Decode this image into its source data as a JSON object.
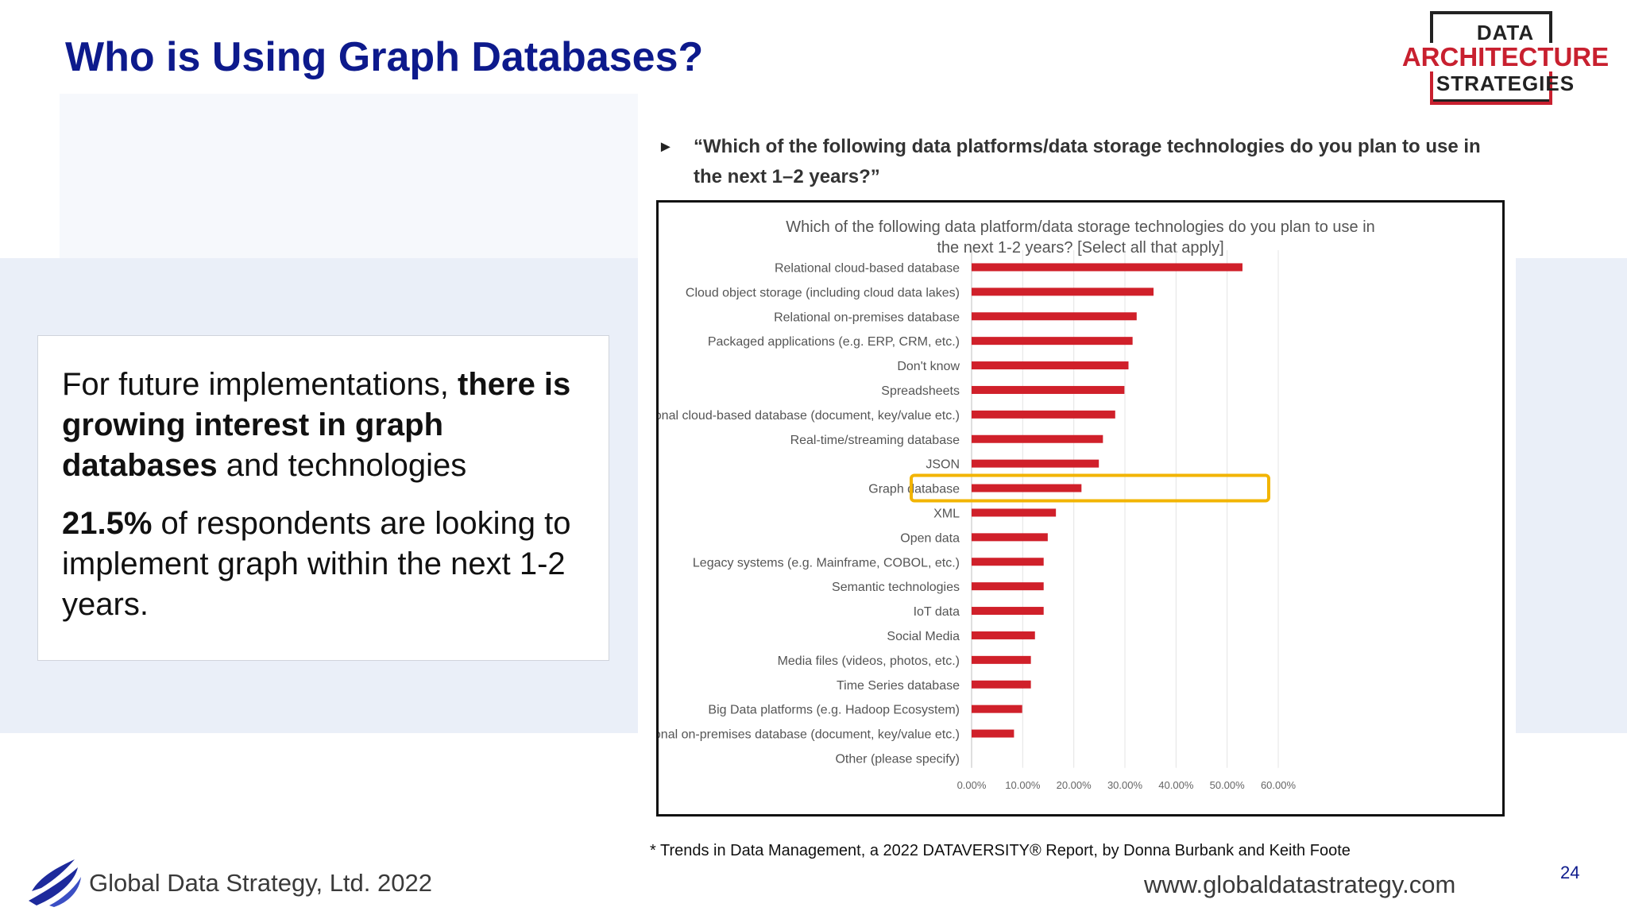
{
  "slide": {
    "title": "Who is Using Graph Databases?",
    "logo": {
      "line1": "DATA",
      "line2": "ARCHITECTURE",
      "line3": "STRATEGIES"
    },
    "textbox": {
      "p1_a": "For future implementations, ",
      "p1_b": "there is growing interest in graph databases",
      "p1_c": " and technologies",
      "p2_a": "21.5%",
      "p2_b": " of respondents are looking to implement graph within the next 1-2 years."
    },
    "question": "“Which of the following data platforms/data storage technologies do you plan to use in the next 1–2 years?”",
    "footnote": "* Trends in Data Management, a 2022 DATAVERSITY® Report, by Donna Burbank and Keith Foote",
    "company": "Global Data Strategy, Ltd. 2022",
    "website": "www.globaldatastrategy.com",
    "page_number": "24",
    "accent_color": "#0d1a8c",
    "bar_color": "#d0202a",
    "highlight_color": "#f2b400"
  },
  "chart_data": {
    "type": "bar",
    "orientation": "horizontal",
    "title": "Which of the following data platform/data storage technologies do you plan to use in the next 1-2 years? [Select all that apply]",
    "categories": [
      "Relational cloud-based database",
      "Cloud object storage (including cloud data lakes)",
      "Relational on-premises database",
      "Packaged applications (e.g. ERP, CRM, etc.)",
      "Don't know",
      "Spreadsheets",
      "Non-relational cloud-based database (document, key/value etc.)",
      "Real-time/streaming database",
      "JSON",
      "Graph database",
      "XML",
      "Open data",
      "Legacy systems (e.g. Mainframe, COBOL, etc.)",
      "Semantic technologies",
      "IoT data",
      "Social Media",
      "Media files (videos, photos, etc.)",
      "Time Series database",
      "Big Data platforms (e.g. Hadoop Ecosystem)",
      "Non-relational on-premises database (document, key/value etc.)",
      "Other (please specify)"
    ],
    "values": [
      53.0,
      35.6,
      32.3,
      31.5,
      30.7,
      29.9,
      28.1,
      25.7,
      24.9,
      21.5,
      16.5,
      14.9,
      14.1,
      14.1,
      14.1,
      12.4,
      11.6,
      11.6,
      9.9,
      8.3,
      0
    ],
    "highlighted_category": "Graph database",
    "xlim": [
      0,
      60
    ],
    "xticks": [
      "0.00%",
      "10.00%",
      "20.00%",
      "30.00%",
      "40.00%",
      "50.00%",
      "60.00%"
    ],
    "grid": true
  }
}
